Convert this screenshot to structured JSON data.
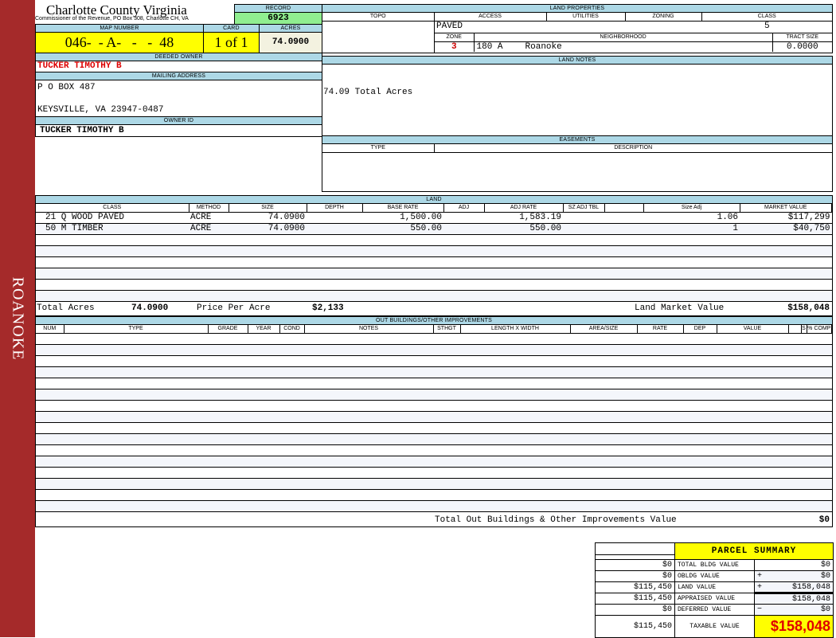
{
  "sidebar": {
    "label": "ROANOKE"
  },
  "header": {
    "title": "Charlotte County Virginia",
    "subtitle": "Commissioner of the Revenue, PO Box 308, Charlotte CH, VA"
  },
  "record": {
    "label": "RECORD",
    "value": "6923"
  },
  "map": {
    "label": "MAP NUMBER",
    "value": "046-  - A-   -   -  48"
  },
  "card": {
    "label": "CARD",
    "value": "1 of 1"
  },
  "acres": {
    "label": "ACRES",
    "value": "74.0900"
  },
  "deeded_owner": {
    "label": "DEEDED OWNER",
    "value": "TUCKER TIMOTHY B"
  },
  "mailing": {
    "label": "MAILING ADDRESS",
    "line1": "P O BOX 487",
    "line2": "KEYSVILLE, VA 23947-0487"
  },
  "owner_id": {
    "label": "OWNER ID",
    "value": "TUCKER TIMOTHY B"
  },
  "land_properties": {
    "label": "LAND PROPERTIES",
    "cols": [
      "TOPO",
      "ACCESS",
      "UTILITIES",
      "ZONING",
      "CLASS"
    ],
    "access": "PAVED",
    "class": "5",
    "zone_label": "ZONE",
    "neighborhood_label": "NEIGHBORHOOD",
    "tract_label": "TRACT SIZE",
    "zone": "3",
    "neighborhood_code": "180 A",
    "neighborhood": "Roanoke",
    "tract_size": "0.0000"
  },
  "land_notes": {
    "label": "LAND NOTES",
    "text": "74.09 Total Acres"
  },
  "easements": {
    "label": "EASEMENTS",
    "cols": [
      "TYPE",
      "DESCRIPTION"
    ]
  },
  "land": {
    "label": "LAND",
    "cols": [
      "CLASS",
      "METHOD",
      "SIZE",
      "DEPTH",
      "BASE RATE",
      "ADJ",
      "ADJ RATE",
      "SZ ADJ TBL",
      "",
      "Size Adj",
      "MARKET VALUE"
    ],
    "rows": [
      [
        "21 Q WOOD PAVED",
        "ACRE",
        "74.0900",
        "",
        "1,500.00",
        "",
        "1,583.19",
        "",
        "",
        "1.06",
        "$117,299"
      ],
      [
        "50 M TIMBER",
        "ACRE",
        "74.0900",
        "",
        "550.00",
        "",
        "550.00",
        "",
        "",
        "1",
        "$40,750"
      ]
    ],
    "total_acres_label": "Total Acres",
    "total_acres": "74.0900",
    "ppa_label": "Price Per Acre",
    "ppa": "$2,133",
    "lmv_label": "Land Market Value",
    "lmv": "$158,048"
  },
  "outbuildings": {
    "label": "OUT BUILDINGS/OTHER IMPROVEMENTS",
    "cols": [
      "NUM",
      "TYPE",
      "GRADE",
      "YEAR",
      "COND",
      "NOTES",
      "STHGT",
      "LENGTH X WIDTH",
      "AREA/SIZE",
      "RATE",
      "DEP",
      "VALUE",
      "",
      "S",
      "% COMP"
    ],
    "total_label": "Total Out Buildings & Other Improvements Value",
    "total": "$0"
  },
  "summary": {
    "title": "PARCEL SUMMARY",
    "rows": [
      {
        "prev": "$0",
        "label": "TOTAL BLDG VALUE",
        "op": "",
        "value": "$0"
      },
      {
        "prev": "$0",
        "label": "OBLDG VALUE",
        "op": "+",
        "value": "$0"
      },
      {
        "prev": "$115,450",
        "label": "LAND VALUE",
        "op": "+",
        "value": "$158,048"
      },
      {
        "prev": "$115,450",
        "label": "APPRAISED VALUE",
        "op": "",
        "value": "$158,048"
      },
      {
        "prev": "$0",
        "label": "DEFERRED VALUE",
        "op": "−",
        "value": "$0"
      }
    ],
    "taxable_prev": "$115,450",
    "taxable_label": "TAXABLE VALUE",
    "taxable": "$158,048"
  },
  "colors": {
    "sidebar": "#a52a2a",
    "header": "#add8e6",
    "record": "#90ee90",
    "highlight": "#ffff00",
    "owner": "#dd0000"
  }
}
